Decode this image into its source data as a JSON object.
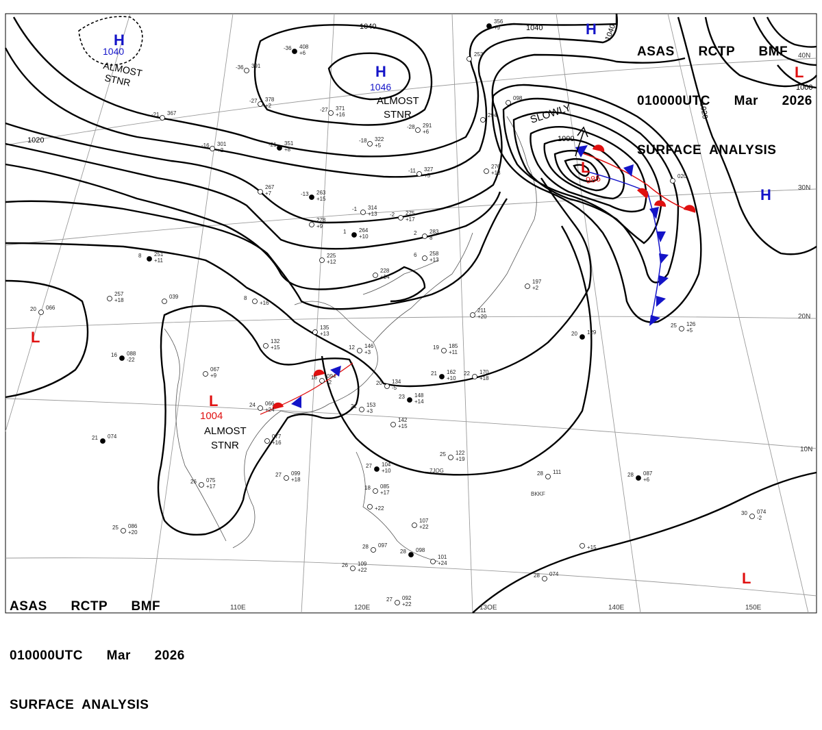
{
  "header": {
    "line1": "ASAS      RCTP      BMF",
    "line2": "010000UTC      Mar      2026",
    "line3": "SURFACE  ANALYSIS"
  },
  "colors": {
    "high": "#1414c8",
    "low": "#e01010",
    "warm_front": "#e01010",
    "cold_front": "#1414c8",
    "isobar": "#000000",
    "graticule": "#9a9a9a",
    "coast": "#555555"
  },
  "longitudes": [
    "110E",
    "120E",
    "13OE",
    "140E",
    "150E"
  ],
  "latitudes": [
    "40N",
    "30N",
    "20N",
    "10N"
  ],
  "isobar_labels": [
    "1040",
    "1040",
    "1040",
    "1020",
    "1020",
    "1000",
    "1000"
  ],
  "centers": [
    {
      "type": "H",
      "value": "1040",
      "note1": "ALMOST",
      "note2": "STNR"
    },
    {
      "type": "H",
      "value": "1046",
      "note1": "ALMOST",
      "note2": "STNR"
    },
    {
      "type": "H",
      "value": "",
      "note1": "",
      "note2": ""
    },
    {
      "type": "H",
      "value": "",
      "note1": "",
      "note2": ""
    },
    {
      "type": "L",
      "value": "986",
      "note1": "",
      "note2": ""
    },
    {
      "type": "L",
      "value": "1004",
      "note1": "ALMOST",
      "note2": "STNR"
    },
    {
      "type": "L",
      "value": "",
      "note1": "",
      "note2": ""
    },
    {
      "type": "L",
      "value": "",
      "note1": "",
      "note2": ""
    },
    {
      "type": "L",
      "value": "",
      "note1": "",
      "note2": ""
    }
  ],
  "motion_label": "SLOWLY",
  "stations": [
    {
      "t": "-36",
      "p": "408",
      "d": "+6"
    },
    {
      "t": "-36",
      "p": "391",
      "d": ""
    },
    {
      "t": "-27",
      "p": "378",
      "d": "+2"
    },
    {
      "t": "-27",
      "p": "371",
      "d": "+16"
    },
    {
      "t": "-21",
      "p": "367",
      "d": ""
    },
    {
      "t": "-21",
      "p": "351",
      "d": "+8"
    },
    {
      "t": "-16",
      "p": "301",
      "d": "+2"
    },
    {
      "t": "-18",
      "p": "322",
      "d": "+5"
    },
    {
      "t": "-28",
      "p": "291",
      "d": "+6"
    },
    {
      "t": "-11",
      "p": "327",
      "d": "+5"
    },
    {
      "t": "-13",
      "p": "263",
      "d": "+15"
    },
    {
      "t": "-1",
      "p": "314",
      "d": "+13"
    },
    {
      "t": "-2",
      "p": "275",
      "d": "+17"
    },
    {
      "t": "",
      "p": "267",
      "d": "+7"
    },
    {
      "t": "",
      "p": "278",
      "d": "+9"
    },
    {
      "t": "1",
      "p": "264",
      "d": "+10"
    },
    {
      "t": "2",
      "p": "283",
      "d": "8"
    },
    {
      "t": "6",
      "p": "258",
      "d": "+13"
    },
    {
      "t": "",
      "p": "228",
      "d": "+14"
    },
    {
      "t": "",
      "p": "225",
      "d": "+12"
    },
    {
      "t": "8",
      "p": "251",
      "d": "+11"
    },
    {
      "t": "",
      "p": "257",
      "d": "+18"
    },
    {
      "t": "",
      "p": "039",
      "d": ""
    },
    {
      "t": "8",
      "p": "",
      "d": "+16"
    },
    {
      "t": "20",
      "p": "066",
      "d": ""
    },
    {
      "t": "16",
      "p": "088",
      "d": "-22"
    },
    {
      "t": "",
      "p": "132",
      "d": "+15"
    },
    {
      "t": "",
      "p": "135",
      "d": "+13"
    },
    {
      "t": "12",
      "p": "146",
      "d": "+3"
    },
    {
      "t": "19",
      "p": "185",
      "d": "+11"
    },
    {
      "t": "21",
      "p": "162",
      "d": "+10"
    },
    {
      "t": "22",
      "p": "170",
      "d": "+18"
    },
    {
      "t": "",
      "p": "067",
      "d": "+9"
    },
    {
      "t": "16",
      "p": "094",
      "d": "-2"
    },
    {
      "t": "20",
      "p": "134",
      "d": "-5"
    },
    {
      "t": "23",
      "p": "148",
      "d": "+14"
    },
    {
      "t": "21",
      "p": "153",
      "d": "+3"
    },
    {
      "t": "",
      "p": "142",
      "d": "+15"
    },
    {
      "t": "",
      "p": "211",
      "d": "+20"
    },
    {
      "t": "",
      "p": "197",
      "d": "+2"
    },
    {
      "t": "20",
      "p": "129",
      "d": ""
    },
    {
      "t": "25",
      "p": "126",
      "d": "+5"
    },
    {
      "t": "",
      "p": "276",
      "d": "+13"
    },
    {
      "t": "",
      "p": "294",
      "d": ""
    },
    {
      "t": "",
      "p": "253",
      "d": ""
    },
    {
      "t": "",
      "p": "356",
      "d": "+9"
    },
    {
      "t": "",
      "p": "098",
      "d": ""
    },
    {
      "t": "",
      "p": "020",
      "d": ""
    },
    {
      "t": "24",
      "p": "066",
      "d": "+24"
    },
    {
      "t": "",
      "p": "077",
      "d": "+16"
    },
    {
      "t": "21",
      "p": "074",
      "d": ""
    },
    {
      "t": "26",
      "p": "075",
      "d": "+17"
    },
    {
      "t": "27",
      "p": "099",
      "d": "+18"
    },
    {
      "t": "25",
      "p": "086",
      "d": "+20"
    },
    {
      "t": "25",
      "p": "122",
      "d": "+19"
    },
    {
      "t": "27",
      "p": "104",
      "d": "+10"
    },
    {
      "t": "18",
      "p": "085",
      "d": "+17"
    },
    {
      "t": "",
      "p": "",
      "d": "+22"
    },
    {
      "t": "",
      "p": "107",
      "d": "+22"
    },
    {
      "t": "28",
      "p": "097",
      "d": ""
    },
    {
      "t": "28",
      "p": "098",
      "d": ""
    },
    {
      "t": "26",
      "p": "109",
      "d": "+22"
    },
    {
      "t": "",
      "p": "101",
      "d": "+24"
    },
    {
      "t": "27",
      "p": "092",
      "d": "+22"
    },
    {
      "t": "28",
      "p": "111",
      "d": ""
    },
    {
      "t": "28",
      "p": "087",
      "d": "+6"
    },
    {
      "t": "30",
      "p": "074",
      "d": "-2"
    },
    {
      "t": "",
      "p": "",
      "d": "+15"
    },
    {
      "t": "28",
      "p": "074",
      "d": ""
    }
  ],
  "station_ids": [
    "7JOG",
    "BKKF"
  ]
}
